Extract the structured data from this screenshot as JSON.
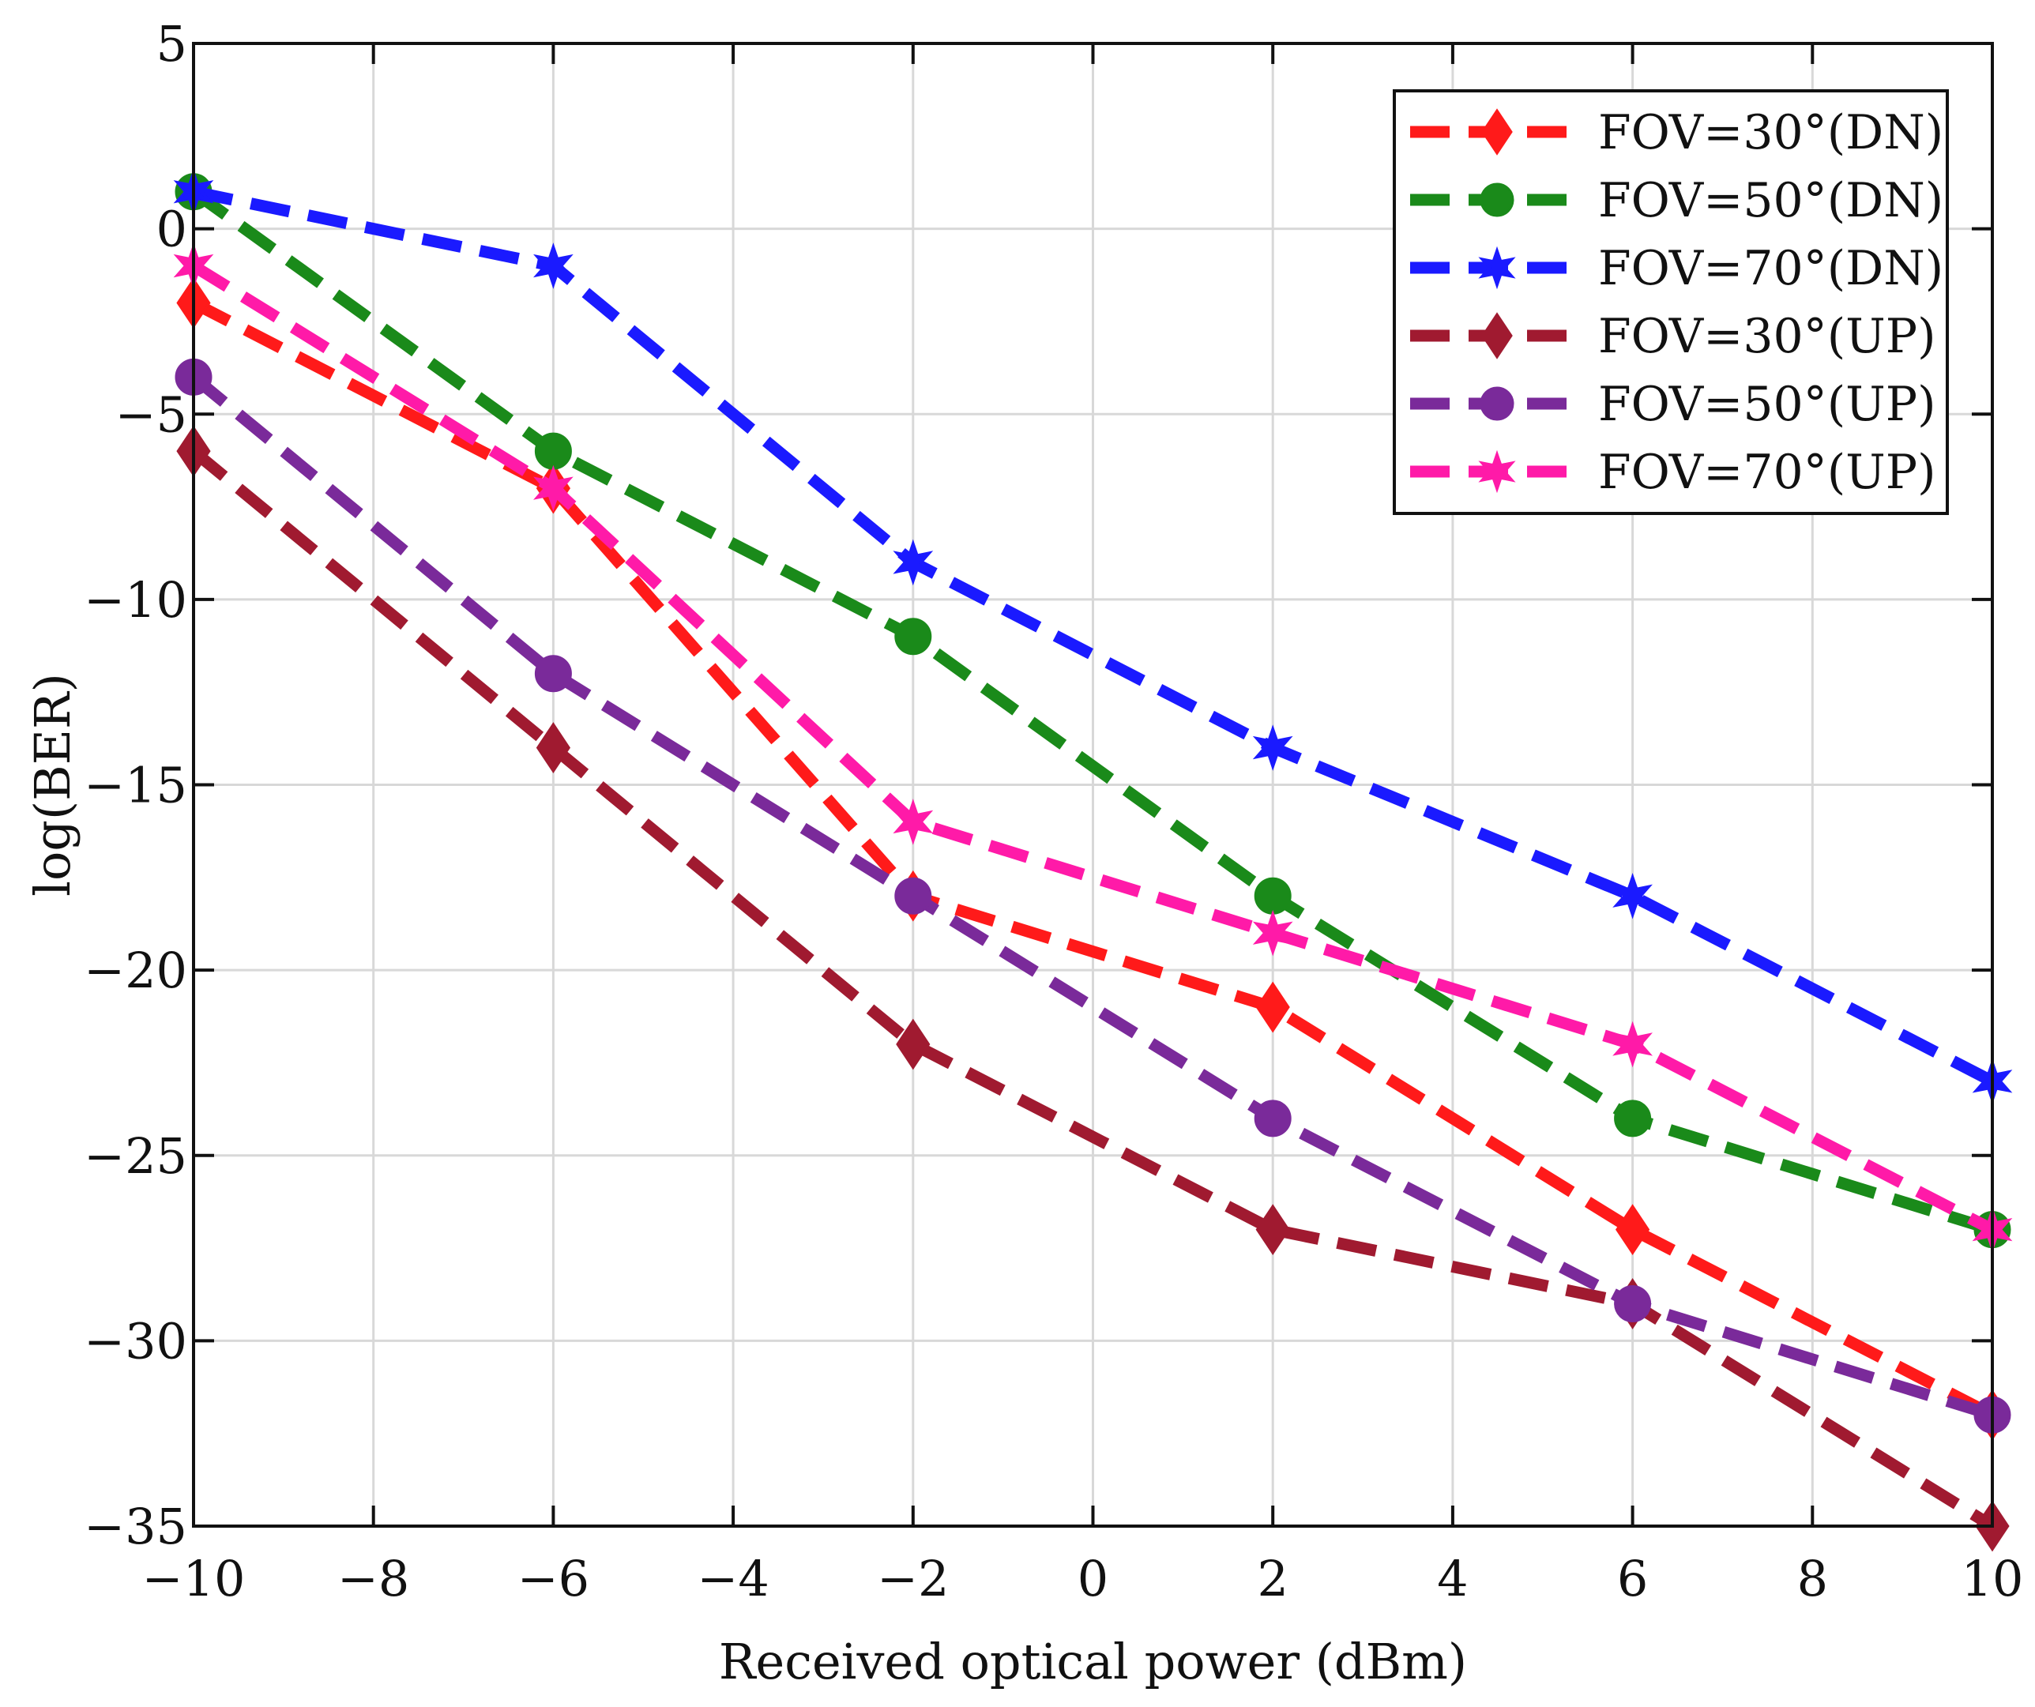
{
  "chart_data": {
    "type": "line",
    "title": "",
    "xlabel": "Received optical power (dBm)",
    "ylabel": "log(BER)",
    "xlim": [
      -10,
      10
    ],
    "ylim": [
      -35,
      5
    ],
    "xticks": [
      -10,
      -8,
      -6,
      -4,
      -2,
      0,
      2,
      4,
      6,
      8,
      10
    ],
    "yticks": [
      5,
      0,
      -5,
      -10,
      -15,
      -20,
      -25,
      -30,
      -35
    ],
    "xtick_labels": [
      "−10",
      "−8",
      "−6",
      "−4",
      "−2",
      "0",
      "2",
      "4",
      "6",
      "8",
      "10"
    ],
    "ytick_labels": [
      "5",
      "0",
      "−5",
      "−10",
      "−15",
      "−20",
      "−25",
      "−30",
      "−35"
    ],
    "grid": true,
    "legend_position": "top-right",
    "x": [
      -10,
      -6,
      -2,
      2,
      6,
      10
    ],
    "series": [
      {
        "name": "FOV=30°(DN)",
        "color": "#ff1a1a",
        "marker": "diamond",
        "values": [
          -2,
          -7,
          -18,
          -21,
          -27,
          -32
        ]
      },
      {
        "name": "FOV=50°(DN)",
        "color": "#1a8a1a",
        "marker": "circle",
        "values": [
          1,
          -6,
          -11,
          -18,
          -24,
          -27
        ]
      },
      {
        "name": "FOV=70°(DN)",
        "color": "#1a1aff",
        "marker": "star",
        "values": [
          1,
          -1,
          -9,
          -14,
          -18,
          -23
        ]
      },
      {
        "name": "FOV=30°(UP)",
        "color": "#a01a30",
        "marker": "diamond",
        "values": [
          -6,
          -14,
          -22,
          -27,
          -29,
          -35
        ]
      },
      {
        "name": "FOV=50°(UP)",
        "color": "#7a2a9a",
        "marker": "circle",
        "values": [
          -4,
          -12,
          -18,
          -24,
          -29,
          -32
        ]
      },
      {
        "name": "FOV=70°(UP)",
        "color": "#ff1aa8",
        "marker": "star",
        "values": [
          -1,
          -7,
          -16,
          -19,
          -22,
          -27
        ]
      }
    ]
  }
}
